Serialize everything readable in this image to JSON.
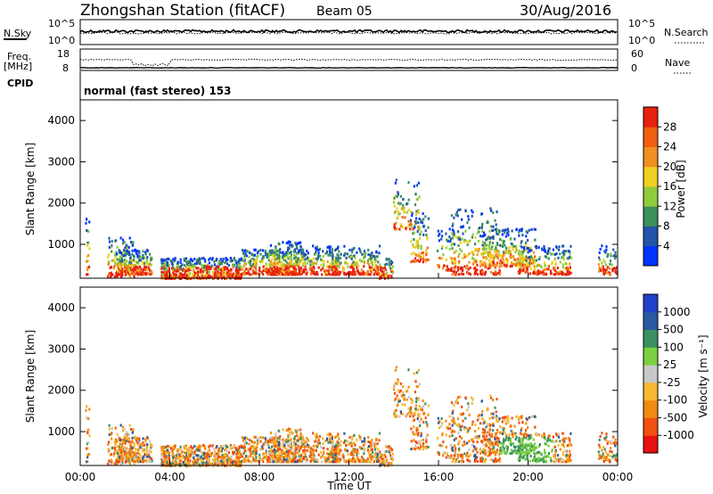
{
  "header": {
    "station": "Zhongshan Station (fitACF)",
    "beam": "Beam 05",
    "date": "30/Aug/2016"
  },
  "params": {
    "nsky_label": "N.Sky",
    "nsky_ticks": [
      "10^5",
      "10^0"
    ],
    "nsearch_label": "N.Search",
    "nsearch_ticks": [
      "10^5",
      "10^0"
    ],
    "freq_label_1": "Freq.",
    "freq_label_2": "[MHz]",
    "freq_ticks": [
      "18",
      "8"
    ],
    "nave_label": "Nave",
    "nave_ticks": [
      "60",
      "0"
    ],
    "cpid_label": "CPID",
    "cpid_text": "normal (fast stereo) 153"
  },
  "colors": {
    "power": [
      "#0033ff",
      "#2255aa",
      "#3a8f5a",
      "#8fcc3c",
      "#f0d020",
      "#f09020",
      "#f06010",
      "#e82010"
    ],
    "velocity": [
      "#e81010",
      "#f05010",
      "#f08a10",
      "#f5b830",
      "#c8c8c8",
      "#7ad040",
      "#3a9060",
      "#2a5aa0",
      "#2040c8"
    ]
  },
  "chart_data": [
    {
      "type": "heatmap",
      "name": "power",
      "ylabel": "Slant Range [km]",
      "yticks": [
        "1000",
        "2000",
        "3000",
        "4000"
      ],
      "ylim": [
        180,
        4500
      ],
      "colorbar_label": "Power [dB]",
      "colorbar_ticks": [
        "4",
        "8",
        "12",
        "16",
        "20",
        "24",
        "28"
      ],
      "colorbar_range": [
        0,
        32
      ]
    },
    {
      "type": "heatmap",
      "name": "velocity",
      "ylabel": "Slant Range [km]",
      "yticks": [
        "1000",
        "2000",
        "3000",
        "4000"
      ],
      "ylim": [
        180,
        4500
      ],
      "colorbar_label": "Velocity [m s⁻¹]",
      "colorbar_ticks": [
        "-1000",
        "-500",
        "-100",
        "-25",
        "25",
        "100",
        "500",
        "1000"
      ]
    }
  ],
  "xaxis": {
    "ticks": [
      "00:00",
      "04:00",
      "08:00",
      "12:00",
      "16:00",
      "20:00",
      "00:00"
    ],
    "label": "Time UT"
  }
}
